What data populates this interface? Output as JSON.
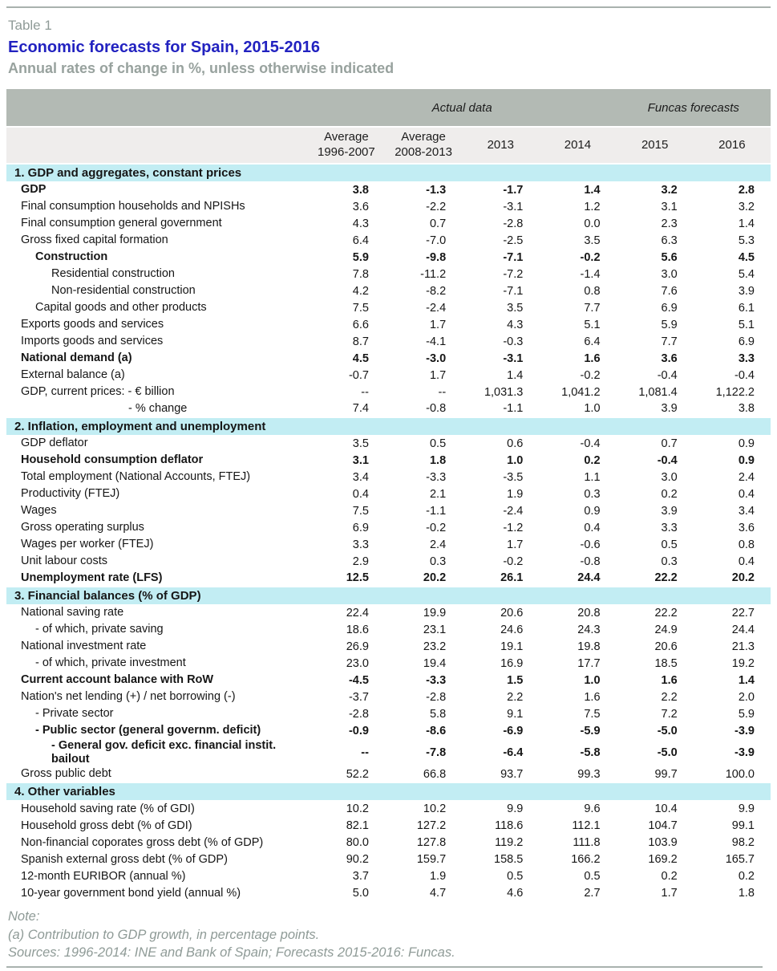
{
  "title": {
    "table_label": "Table 1",
    "heading": "Economic forecasts for Spain, 2015-2016",
    "subheading": "Annual rates of change in %, unless otherwise indicated"
  },
  "colors": {
    "heading_blue": "#2222c0",
    "muted_gray_text": "#8f9b97",
    "group_band_gray": "#b3bab4",
    "column_band_gray": "#efedec",
    "section_band_cyan": "#c2edf3",
    "rule_line": "#a9b2ae"
  },
  "table": {
    "group_headers": [
      {
        "label": "Actual data",
        "span": 4
      },
      {
        "label": "Funcas forecasts",
        "span": 2
      }
    ],
    "columns": [
      "Average\n1996-2007",
      "Average\n2008-2013",
      "2013",
      "2014",
      "2015",
      "2016"
    ],
    "sections": [
      {
        "title": "1. GDP and aggregates, constant prices",
        "rows": [
          {
            "label": "GDP",
            "bold": true,
            "indent": 0,
            "values": [
              "3.8",
              "-1.3",
              "-1.7",
              "1.4",
              "3.2",
              "2.8"
            ]
          },
          {
            "label": "Final consumption households and NPISHs",
            "bold": false,
            "indent": 0,
            "values": [
              "3.6",
              "-2.2",
              "-3.1",
              "1.2",
              "3.1",
              "3.2"
            ]
          },
          {
            "label": "Final consumption general government",
            "bold": false,
            "indent": 0,
            "values": [
              "4.3",
              "0.7",
              "-2.8",
              "0.0",
              "2.3",
              "1.4"
            ]
          },
          {
            "label": "Gross fixed capital formation",
            "bold": false,
            "indent": 0,
            "values": [
              "6.4",
              "-7.0",
              "-2.5",
              "3.5",
              "6.3",
              "5.3"
            ]
          },
          {
            "label": "Construction",
            "bold": true,
            "indent": 1,
            "values": [
              "5.9",
              "-9.8",
              "-7.1",
              "-0.2",
              "5.6",
              "4.5"
            ]
          },
          {
            "label": "Residential construction",
            "bold": false,
            "indent": 2,
            "values": [
              "7.8",
              "-11.2",
              "-7.2",
              "-1.4",
              "3.0",
              "5.4"
            ]
          },
          {
            "label": "Non-residential construction",
            "bold": false,
            "indent": 2,
            "values": [
              "4.2",
              "-8.2",
              "-7.1",
              "0.8",
              "7.6",
              "3.9"
            ]
          },
          {
            "label": "Capital goods and other products",
            "bold": false,
            "indent": 1,
            "values": [
              "7.5",
              "-2.4",
              "3.5",
              "7.7",
              "6.9",
              "6.1"
            ]
          },
          {
            "label": "Exports goods and services",
            "bold": false,
            "indent": 0,
            "values": [
              "6.6",
              "1.7",
              "4.3",
              "5.1",
              "5.9",
              "5.1"
            ]
          },
          {
            "label": "Imports goods and services",
            "bold": false,
            "indent": 0,
            "values": [
              "8.7",
              "-4.1",
              "-0.3",
              "6.4",
              "7.7",
              "6.9"
            ]
          },
          {
            "label": "National demand (a)",
            "bold": true,
            "indent": 0,
            "values": [
              "4.5",
              "-3.0",
              "-3.1",
              "1.6",
              "3.6",
              "3.3"
            ]
          },
          {
            "label": "External balance (a)",
            "bold": false,
            "indent": 0,
            "values": [
              "-0.7",
              "1.7",
              "1.4",
              "-0.2",
              "-0.4",
              "-0.4"
            ]
          },
          {
            "label": "GDP, current prices: - € billion",
            "bold": false,
            "indent": 0,
            "values": [
              "--",
              "--",
              "1,031.3",
              "1,041.2",
              "1,081.4",
              "1,122.2"
            ]
          },
          {
            "label": "- % change",
            "bold": false,
            "indent": 6,
            "values": [
              "7.4",
              "-0.8",
              "-1.1",
              "1.0",
              "3.9",
              "3.8"
            ]
          }
        ]
      },
      {
        "title": "2. Inflation, employment and unemployment",
        "rows": [
          {
            "label": "GDP deflator",
            "bold": false,
            "indent": 0,
            "values": [
              "3.5",
              "0.5",
              "0.6",
              "-0.4",
              "0.7",
              "0.9"
            ]
          },
          {
            "label": "Household consumption deflator",
            "bold": true,
            "indent": 0,
            "values": [
              "3.1",
              "1.8",
              "1.0",
              "0.2",
              "-0.4",
              "0.9"
            ]
          },
          {
            "label": "Total employment (National Accounts, FTEJ)",
            "bold": false,
            "indent": 0,
            "values": [
              "3.4",
              "-3.3",
              "-3.5",
              "1.1",
              "3.0",
              "2.4"
            ]
          },
          {
            "label": "Productivity (FTEJ)",
            "bold": false,
            "indent": 0,
            "values": [
              "0.4",
              "2.1",
              "1.9",
              "0.3",
              "0.2",
              "0.4"
            ]
          },
          {
            "label": "Wages",
            "bold": false,
            "indent": 0,
            "values": [
              "7.5",
              "-1.1",
              "-2.4",
              "0.9",
              "3.9",
              "3.4"
            ]
          },
          {
            "label": "Gross operating surplus",
            "bold": false,
            "indent": 0,
            "values": [
              "6.9",
              "-0.2",
              "-1.2",
              "0.4",
              "3.3",
              "3.6"
            ]
          },
          {
            "label": "Wages per worker (FTEJ)",
            "bold": false,
            "indent": 0,
            "values": [
              "3.3",
              "2.4",
              "1.7",
              "-0.6",
              "0.5",
              "0.8"
            ]
          },
          {
            "label": "Unit labour costs",
            "bold": false,
            "indent": 0,
            "values": [
              "2.9",
              "0.3",
              "-0.2",
              "-0.8",
              "0.3",
              "0.4"
            ]
          },
          {
            "label": "Unemployment rate (LFS)",
            "bold": true,
            "indent": 0,
            "values": [
              "12.5",
              "20.2",
              "26.1",
              "24.4",
              "22.2",
              "20.2"
            ]
          }
        ]
      },
      {
        "title": "3. Financial balances (% of GDP)",
        "rows": [
          {
            "label": "National saving rate",
            "bold": false,
            "indent": 0,
            "values": [
              "22.4",
              "19.9",
              "20.6",
              "20.8",
              "22.2",
              "22.7"
            ]
          },
          {
            "label": "- of which, private saving",
            "bold": false,
            "indent": 1,
            "values": [
              "18.6",
              "23.1",
              "24.6",
              "24.3",
              "24.9",
              "24.4"
            ]
          },
          {
            "label": "National investment rate",
            "bold": false,
            "indent": 0,
            "values": [
              "26.9",
              "23.2",
              "19.1",
              "19.8",
              "20.6",
              "21.3"
            ]
          },
          {
            "label": "- of which, private investment",
            "bold": false,
            "indent": 1,
            "values": [
              "23.0",
              "19.4",
              "16.9",
              "17.7",
              "18.5",
              "19.2"
            ]
          },
          {
            "label": "Current account balance with RoW",
            "bold": true,
            "indent": 0,
            "values": [
              "-4.5",
              "-3.3",
              "1.5",
              "1.0",
              "1.6",
              "1.4"
            ]
          },
          {
            "label": "Nation's net lending (+) / net borrowing (-)",
            "bold": false,
            "indent": 0,
            "values": [
              "-3.7",
              "-2.8",
              "2.2",
              "1.6",
              "2.2",
              "2.0"
            ]
          },
          {
            "label": "- Private sector",
            "bold": false,
            "indent": 1,
            "values": [
              "-2.8",
              "5.8",
              "9.1",
              "7.5",
              "7.2",
              "5.9"
            ]
          },
          {
            "label": "- Public sector (general governm. deficit)",
            "bold": true,
            "indent": 1,
            "values": [
              "-0.9",
              "-8.6",
              "-6.9",
              "-5.9",
              "-5.0",
              "-3.9"
            ]
          },
          {
            "label": "- General gov. deficit exc. financial instit. bailout",
            "bold": true,
            "indent": 2,
            "values": [
              "--",
              "-7.8",
              "-6.4",
              "-5.8",
              "-5.0",
              "-3.9"
            ]
          },
          {
            "label": "Gross public debt",
            "bold": false,
            "indent": 0,
            "values": [
              "52.2",
              "66.8",
              "93.7",
              "99.3",
              "99.7",
              "100.0"
            ]
          }
        ]
      },
      {
        "title": "4. Other variables",
        "rows": [
          {
            "label": "Household saving rate (% of GDI)",
            "bold": false,
            "indent": 0,
            "values": [
              "10.2",
              "10.2",
              "9.9",
              "9.6",
              "10.4",
              "9.9"
            ]
          },
          {
            "label": "Household gross debt (% of GDI)",
            "bold": false,
            "indent": 0,
            "values": [
              "82.1",
              "127.2",
              "118.6",
              "112.1",
              "104.7",
              "99.1"
            ]
          },
          {
            "label": "Non-financial coporates gross debt (% of GDP)",
            "bold": false,
            "indent": 0,
            "values": [
              "80.0",
              "127.8",
              "119.2",
              "111.8",
              "103.9",
              "98.2"
            ]
          },
          {
            "label": "Spanish external gross debt (% of GDP)",
            "bold": false,
            "indent": 0,
            "values": [
              "90.2",
              "159.7",
              "158.5",
              "166.2",
              "169.2",
              "165.7"
            ]
          },
          {
            "label": "12-month EURIBOR (annual %)",
            "bold": false,
            "indent": 0,
            "values": [
              "3.7",
              "1.9",
              "0.5",
              "0.5",
              "0.2",
              "0.2"
            ]
          },
          {
            "label": "10-year government bond yield (annual %)",
            "bold": false,
            "indent": 0,
            "values": [
              "5.0",
              "4.7",
              "4.6",
              "2.7",
              "1.7",
              "1.8"
            ]
          }
        ]
      }
    ]
  },
  "notes": {
    "note_label": "Note:",
    "note_a": "(a) Contribution to GDP growth, in percentage points.",
    "sources": "Sources: 1996-2014: INE and Bank of Spain; Forecasts 2015-2016: Funcas."
  }
}
